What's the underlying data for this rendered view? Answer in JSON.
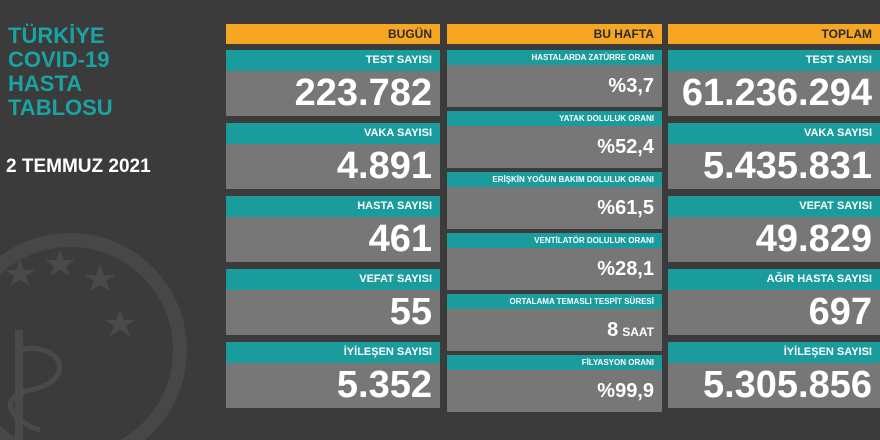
{
  "title": [
    "TÜRKİYE",
    "COVID-19",
    "HASTA",
    "TABLOSU"
  ],
  "date": "2 TEMMUZ 2021",
  "columns": [
    {
      "header": "BUGÜN",
      "cards": [
        {
          "label": "TEST SAYISI",
          "value": "223.782"
        },
        {
          "label": "VAKA SAYISI",
          "value": "4.891"
        },
        {
          "label": "HASTA SAYISI",
          "value": "461"
        },
        {
          "label": "VEFAT SAYISI",
          "value": "55"
        },
        {
          "label": "İYİLEŞEN SAYISI",
          "value": "5.352"
        }
      ]
    },
    {
      "header": "BU HAFTA",
      "cards": [
        {
          "label": "HASTALARDA ZATÜRRE ORANI",
          "value": "%3,7"
        },
        {
          "label": "YATAK DOLULUK ORANI",
          "value": "%52,4"
        },
        {
          "label": "ERİŞKİN YOĞUN BAKIM DOLULUK ORANI",
          "value": "%61,5"
        },
        {
          "label": "VENTİLATÖR DOLULUK ORANI",
          "value": "%28,1"
        },
        {
          "label": "ORTALAMA TEMASLI TESPİT SÜRESİ",
          "value": "8",
          "unit": "SAAT"
        },
        {
          "label": "FİLYASYON ORANI",
          "value": "%99,9"
        }
      ]
    },
    {
      "header": "TOPLAM",
      "cards": [
        {
          "label": "TEST SAYISI",
          "value": "61.236.294"
        },
        {
          "label": "VAKA SAYISI",
          "value": "5.435.831"
        },
        {
          "label": "VEFAT SAYISI",
          "value": "49.829"
        },
        {
          "label": "AĞIR HASTA SAYISI",
          "value": "697"
        },
        {
          "label": "İYİLEŞEN SAYISI",
          "value": "5.305.856"
        }
      ]
    }
  ]
}
